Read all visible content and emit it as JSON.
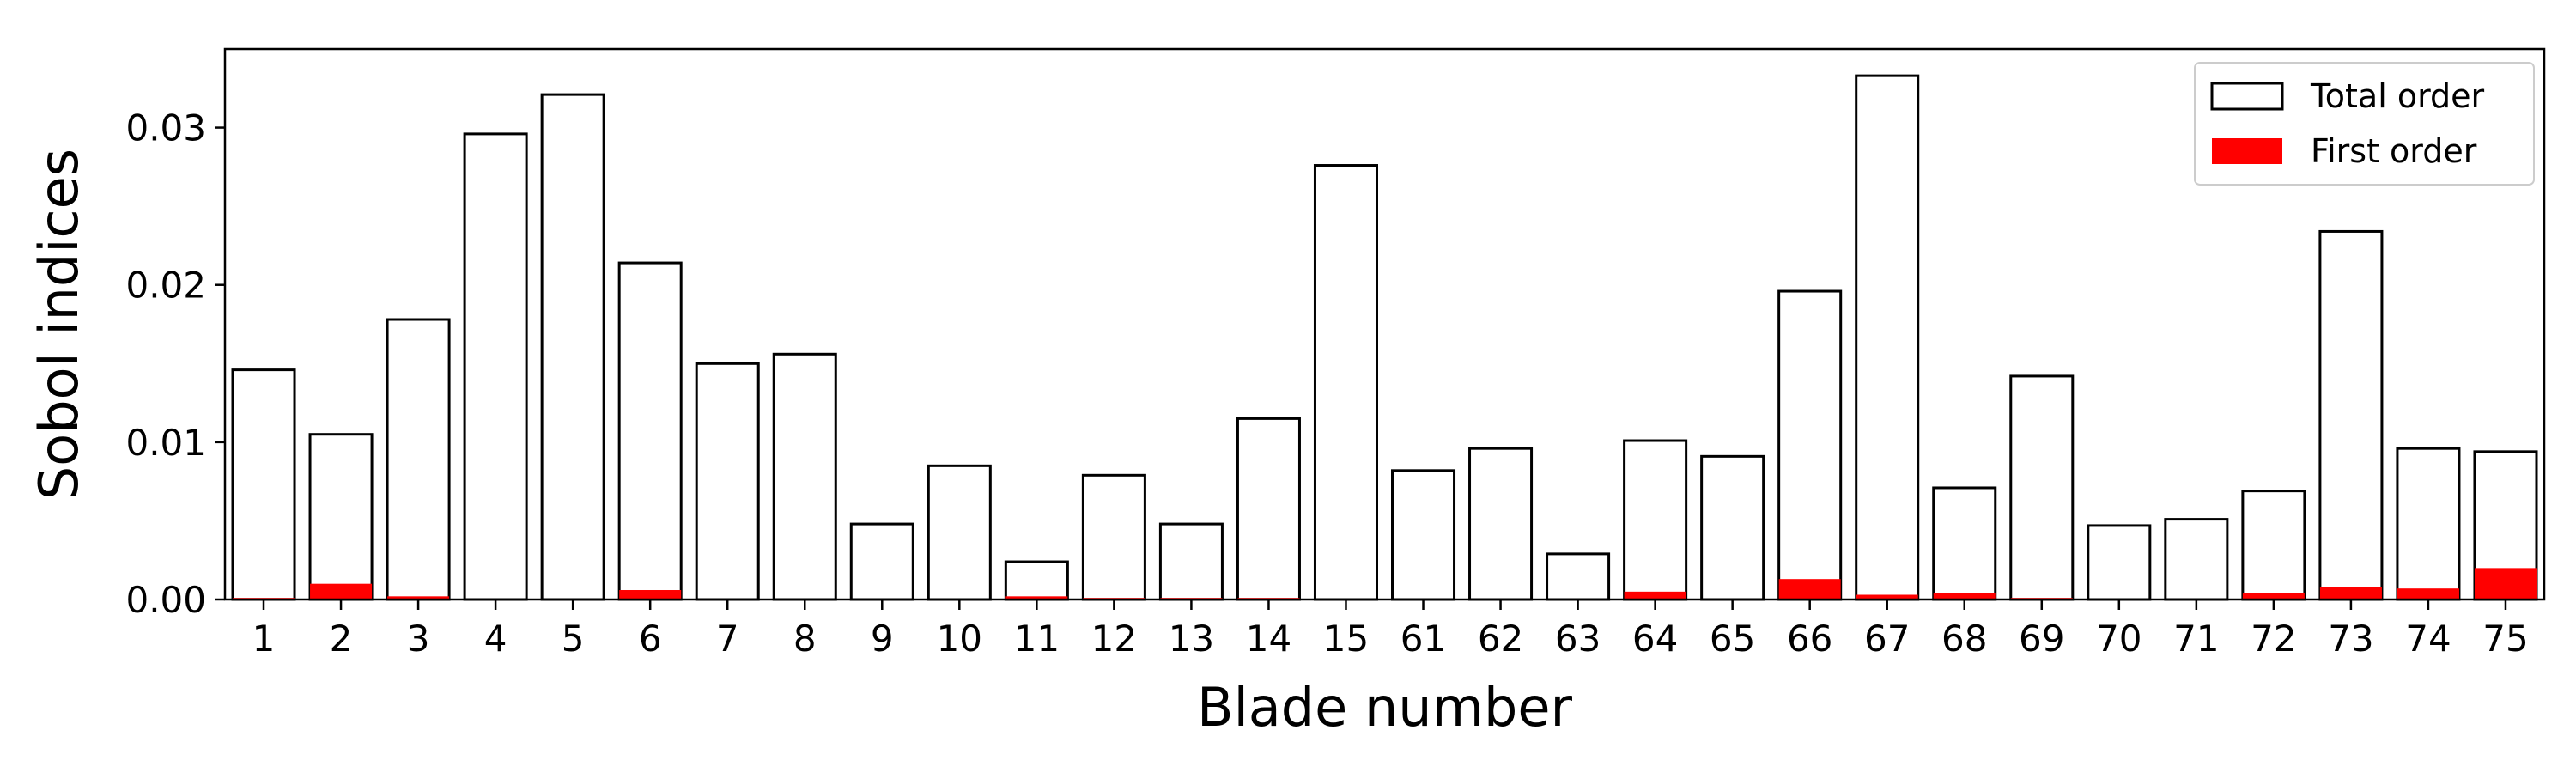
{
  "chart_data": {
    "type": "bar",
    "xlabel": "Blade number",
    "ylabel": "Sobol indices",
    "ylim": [
      0,
      0.035
    ],
    "yticks": [
      "0.00",
      "0.01",
      "0.02",
      "0.03"
    ],
    "yticks_values": [
      0,
      0.01,
      0.02,
      0.03
    ],
    "legend_position": "top-right",
    "grid": false,
    "categories": [
      "1",
      "2",
      "3",
      "4",
      "5",
      "6",
      "7",
      "8",
      "9",
      "10",
      "11",
      "12",
      "13",
      "14",
      "15",
      "61",
      "62",
      "63",
      "64",
      "65",
      "66",
      "67",
      "68",
      "69",
      "70",
      "71",
      "72",
      "73",
      "74",
      "75"
    ],
    "series": [
      {
        "name": "Total order",
        "style": "outline",
        "color": "#000000",
        "values": [
          0.0146,
          0.0105,
          0.0178,
          0.0296,
          0.0321,
          0.0214,
          0.015,
          0.0156,
          0.0048,
          0.0085,
          0.0024,
          0.0079,
          0.0048,
          0.0115,
          0.0276,
          0.0082,
          0.0096,
          0.0029,
          0.0101,
          0.0091,
          0.0196,
          0.0333,
          0.0071,
          0.0142,
          0.0047,
          0.0051,
          0.0069,
          0.0234,
          0.0096,
          0.0094
        ]
      },
      {
        "name": "First order",
        "style": "filled",
        "color": "#ff0000",
        "values": [
          0.0001,
          0.001,
          0.0002,
          0.0,
          0.0,
          0.0006,
          0.0,
          0.0,
          0.0,
          0.0,
          0.0002,
          0.0001,
          0.0001,
          0.0001,
          0.0,
          0.0,
          0.0,
          0.0,
          0.0005,
          0.0,
          0.0013,
          0.0003,
          0.0004,
          0.0001,
          0.0,
          0.0,
          0.0004,
          0.0008,
          0.0007,
          0.002
        ]
      }
    ]
  }
}
